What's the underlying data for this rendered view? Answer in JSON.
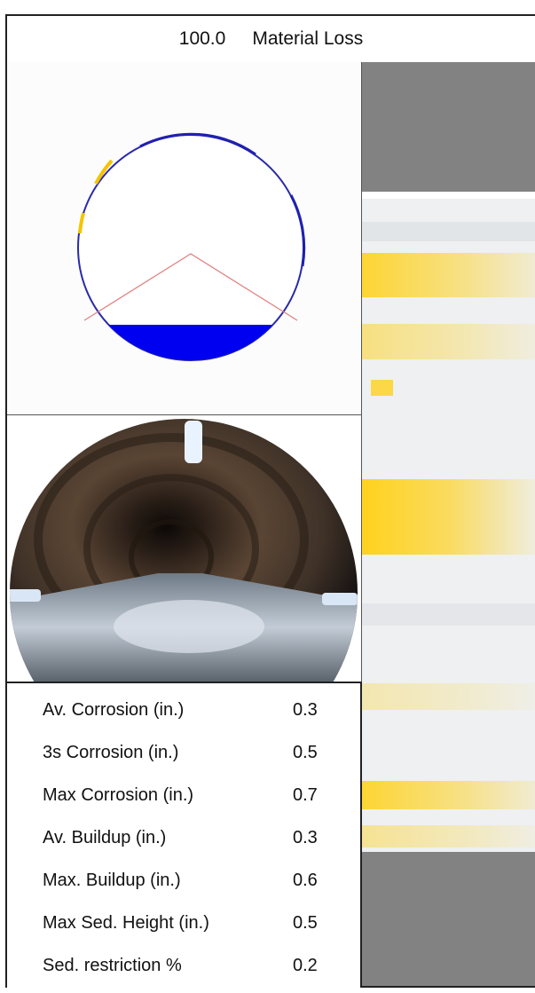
{
  "header": {
    "value": "100.0",
    "label": "Material Loss"
  },
  "colors": {
    "pipe_outline": "#2a2aa8",
    "sediment": "#0000f0",
    "corrosion": "#f5c400",
    "gauge_line": "#e08080",
    "unwrap_bg": "#828282",
    "unwrap_band": "#ffd21e"
  },
  "stats": {
    "rows": [
      {
        "label": "Av. Corrosion (in.)",
        "value": "0.3"
      },
      {
        "label": "3s Corrosion (in.)",
        "value": "0.5"
      },
      {
        "label": "Max Corrosion (in.)",
        "value": "0.7"
      },
      {
        "label": "Av. Buildup (in.)",
        "value": "0.3"
      },
      {
        "label": "Max. Buildup (in.)",
        "value": "0.6"
      },
      {
        "label": "Max Sed. Height (in.)",
        "value": "0.5"
      },
      {
        "label": "Sed. restriction %",
        "value": "0.2"
      }
    ]
  }
}
